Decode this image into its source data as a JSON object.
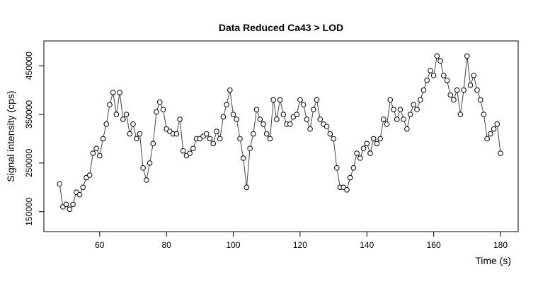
{
  "chart_data": {
    "type": "scatter-line",
    "title": "Data Reduced Ca43 > LOD",
    "x_label": "Time (s)",
    "y_label": "Signal intensity (cps)",
    "x": [
      48,
      49,
      50,
      51,
      52,
      53,
      54,
      55,
      56,
      57,
      58,
      59,
      60,
      61,
      62,
      63,
      64,
      65,
      66,
      67,
      68,
      69,
      70,
      71,
      72,
      73,
      74,
      75,
      76,
      77,
      78,
      79,
      80,
      81,
      82,
      83,
      84,
      85,
      86,
      87,
      88,
      89,
      90,
      91,
      92,
      93,
      94,
      95,
      96,
      97,
      98,
      99,
      100,
      101,
      102,
      103,
      104,
      105,
      106,
      107,
      108,
      109,
      110,
      111,
      112,
      113,
      114,
      115,
      116,
      117,
      118,
      119,
      120,
      121,
      122,
      123,
      124,
      125,
      126,
      127,
      128,
      129,
      130,
      131,
      132,
      133,
      134,
      135,
      136,
      137,
      138,
      139,
      140,
      141,
      142,
      143,
      144,
      145,
      146,
      147,
      148,
      149,
      150,
      151,
      152,
      153,
      154,
      155,
      156,
      157,
      158,
      159,
      160,
      161,
      162,
      163,
      164,
      165,
      166,
      167,
      168,
      169,
      170,
      171,
      172,
      173,
      174,
      175,
      176,
      177,
      178,
      179,
      180
    ],
    "values": [
      207000,
      160000,
      165000,
      155000,
      165000,
      190000,
      185000,
      200000,
      220000,
      225000,
      270000,
      280000,
      265000,
      300000,
      330000,
      370000,
      395000,
      350000,
      395000,
      340000,
      350000,
      310000,
      330000,
      300000,
      310000,
      240000,
      215000,
      250000,
      290000,
      355000,
      375000,
      360000,
      320000,
      315000,
      310000,
      310000,
      340000,
      275000,
      265000,
      270000,
      280000,
      300000,
      300000,
      305000,
      310000,
      300000,
      290000,
      315000,
      300000,
      345000,
      370000,
      400000,
      350000,
      340000,
      300000,
      260000,
      200000,
      280000,
      310000,
      360000,
      340000,
      330000,
      310000,
      300000,
      380000,
      340000,
      380000,
      350000,
      330000,
      330000,
      345000,
      350000,
      380000,
      370000,
      340000,
      320000,
      360000,
      380000,
      340000,
      330000,
      325000,
      310000,
      300000,
      240000,
      200000,
      200000,
      195000,
      220000,
      240000,
      270000,
      260000,
      280000,
      290000,
      270000,
      300000,
      290000,
      300000,
      340000,
      330000,
      380000,
      360000,
      340000,
      360000,
      340000,
      320000,
      350000,
      370000,
      360000,
      380000,
      400000,
      420000,
      440000,
      430000,
      470000,
      460000,
      430000,
      420000,
      390000,
      380000,
      400000,
      350000,
      400000,
      470000,
      410000,
      430000,
      400000,
      380000,
      350000,
      300000,
      310000,
      320000,
      330000,
      270000
    ],
    "color": "#000000",
    "xlim": [
      43.3,
      185.3
    ],
    "xticks": [
      60,
      80,
      100,
      120,
      140,
      160,
      180
    ],
    "ylim": [
      109000,
      501000
    ],
    "yticks": [
      150000,
      250000,
      350000,
      450000
    ]
  }
}
